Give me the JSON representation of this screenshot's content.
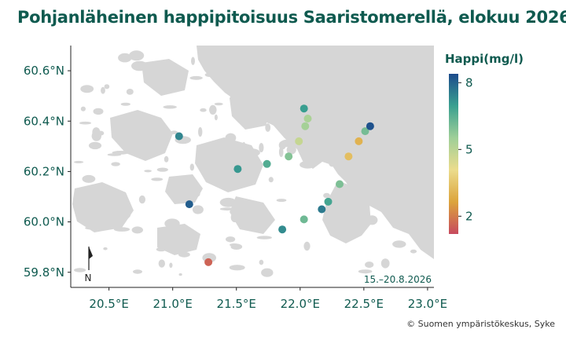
{
  "title": "Pohjanläheinen happipitoisuus Saaristomerellä, elokuu 2026",
  "date_range": "15.–20.8.2026",
  "credit": "© Suomen ympäristökeskus, Syke",
  "north_label": "N",
  "colors": {
    "title": "#0f5a4f",
    "land": "#d6d6d6",
    "sea": "#ffffff"
  },
  "colorbar": {
    "title": "Happi(mg/l)",
    "ticks": [
      "8",
      "5",
      "2"
    ],
    "range": [
      1.2,
      8.4
    ],
    "stops": [
      "#c74a5e",
      "#dca43c",
      "#ebdc8c",
      "#9fcf98",
      "#3aa090",
      "#1c4b8c"
    ]
  },
  "chart_data": {
    "type": "scatter",
    "x_ticks": [
      "20.5°E",
      "21.0°E",
      "21.5°E",
      "22.0°E",
      "22.5°E",
      "23.0°E"
    ],
    "y_ticks": [
      "60.6°N",
      "60.4°N",
      "60.2°N",
      "60.0°N",
      "59.8°N"
    ],
    "xlim": [
      20.2,
      23.05
    ],
    "ylim": [
      59.74,
      60.7
    ],
    "points": [
      {
        "lon": 21.05,
        "lat": 60.34,
        "oxygen": 7.4
      },
      {
        "lon": 21.13,
        "lat": 60.07,
        "oxygen": 8.1
      },
      {
        "lon": 21.28,
        "lat": 59.84,
        "oxygen": 1.6
      },
      {
        "lon": 21.51,
        "lat": 60.21,
        "oxygen": 7.1
      },
      {
        "lon": 21.74,
        "lat": 60.23,
        "oxygen": 6.6
      },
      {
        "lon": 21.86,
        "lat": 59.97,
        "oxygen": 7.3
      },
      {
        "lon": 21.91,
        "lat": 60.26,
        "oxygen": 5.9
      },
      {
        "lon": 21.99,
        "lat": 60.32,
        "oxygen": 4.8
      },
      {
        "lon": 22.03,
        "lat": 60.45,
        "oxygen": 7.0
      },
      {
        "lon": 22.04,
        "lat": 60.38,
        "oxygen": 5.4
      },
      {
        "lon": 22.06,
        "lat": 60.41,
        "oxygen": 5.3
      },
      {
        "lon": 22.03,
        "lat": 60.01,
        "oxygen": 6.2
      },
      {
        "lon": 22.17,
        "lat": 60.05,
        "oxygen": 7.6
      },
      {
        "lon": 22.22,
        "lat": 60.08,
        "oxygen": 6.8
      },
      {
        "lon": 22.31,
        "lat": 60.15,
        "oxygen": 6.0
      },
      {
        "lon": 22.38,
        "lat": 60.26,
        "oxygen": 3.3
      },
      {
        "lon": 22.46,
        "lat": 60.32,
        "oxygen": 3.0
      },
      {
        "lon": 22.51,
        "lat": 60.36,
        "oxygen": 6.1
      },
      {
        "lon": 22.55,
        "lat": 60.38,
        "oxygen": 8.3
      }
    ]
  }
}
